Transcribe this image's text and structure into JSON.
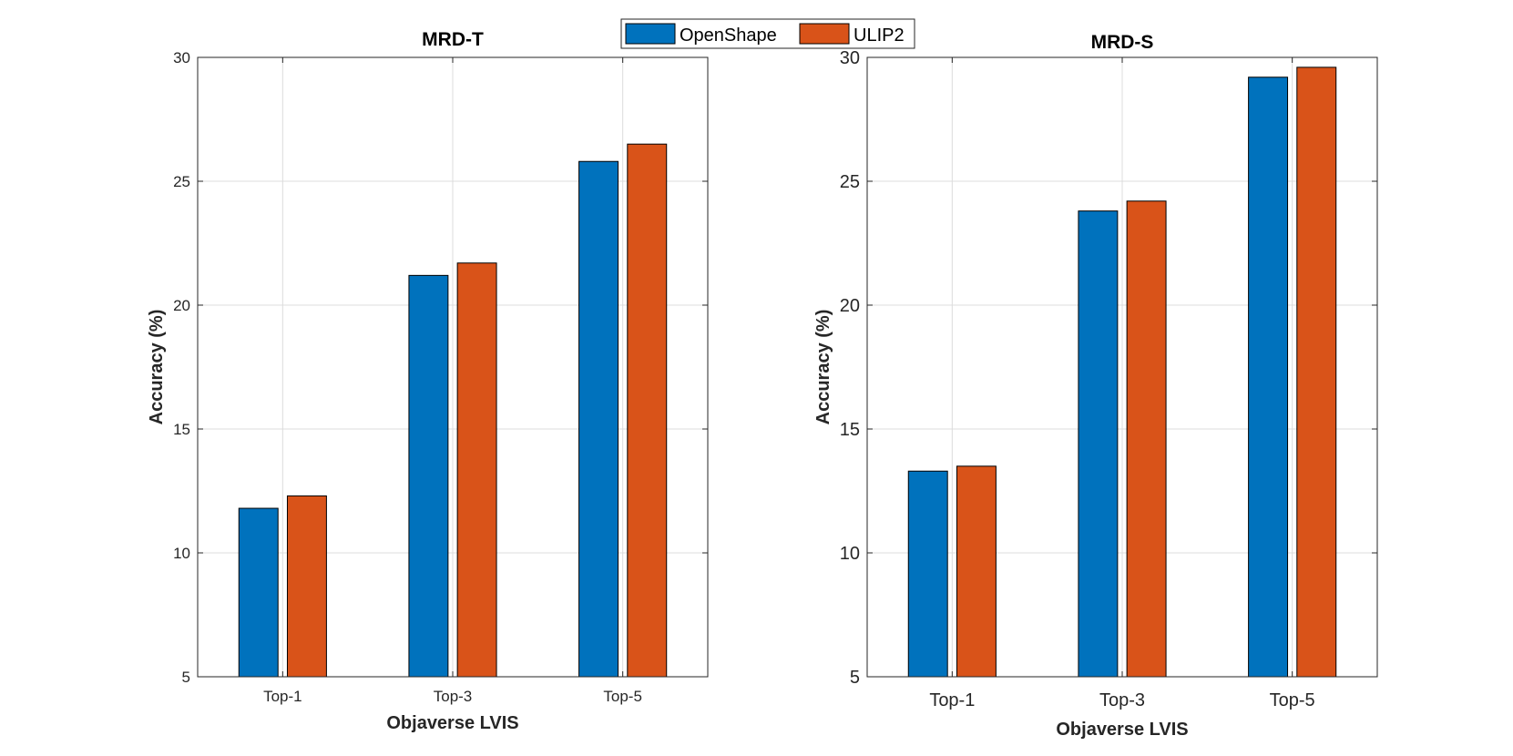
{
  "legend": {
    "entries": [
      {
        "name": "OpenShape",
        "color": "#0072BD"
      },
      {
        "name": "ULIP2",
        "color": "#D95319"
      }
    ],
    "placement": "top-center"
  },
  "chart_data": [
    {
      "type": "bar",
      "title": "MRD-T",
      "xlabel": "Objaverse LVIS",
      "ylabel": "Accuracy (%)",
      "categories": [
        "Top-1",
        "Top-3",
        "Top-5"
      ],
      "ylim": [
        5,
        30
      ],
      "yticks": [
        5,
        10,
        15,
        20,
        25,
        30
      ],
      "grid": true,
      "series": [
        {
          "name": "OpenShape",
          "color": "#0072BD",
          "values": [
            11.8,
            21.2,
            25.8
          ]
        },
        {
          "name": "ULIP2",
          "color": "#D95319",
          "values": [
            12.3,
            21.7,
            26.5
          ]
        }
      ]
    },
    {
      "type": "bar",
      "title": "MRD-S",
      "xlabel": "Objaverse LVIS",
      "ylabel": "Accuracy (%)",
      "categories": [
        "Top-1",
        "Top-3",
        "Top-5"
      ],
      "ylim": [
        5,
        30
      ],
      "yticks": [
        5,
        10,
        15,
        20,
        25,
        30
      ],
      "grid": true,
      "series": [
        {
          "name": "OpenShape",
          "color": "#0072BD",
          "values": [
            13.3,
            23.8,
            29.2
          ]
        },
        {
          "name": "ULIP2",
          "color": "#D95319",
          "values": [
            13.5,
            24.2,
            29.6
          ]
        }
      ]
    }
  ]
}
